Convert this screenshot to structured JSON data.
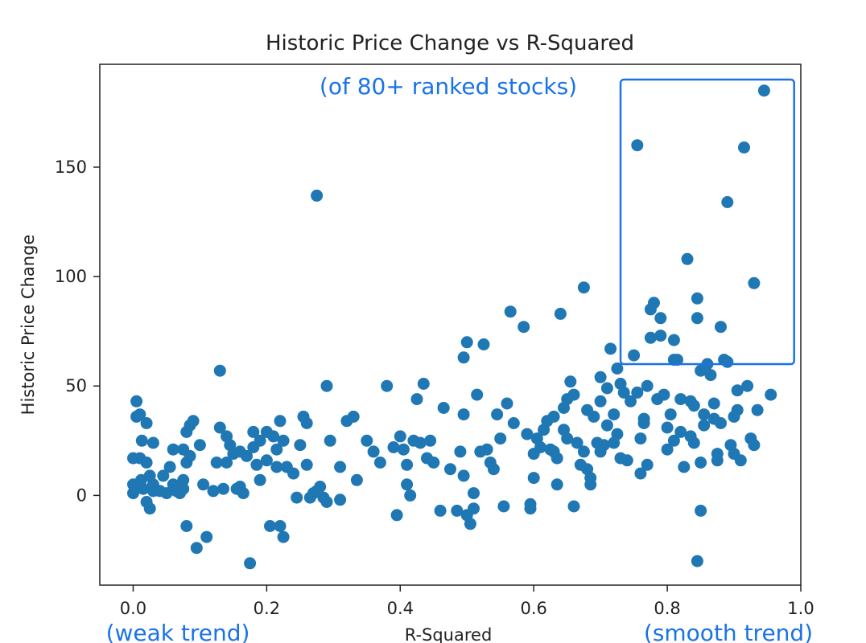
{
  "chart_data": {
    "type": "scatter",
    "title": "Historic Price Change vs R-Squared",
    "xlabel": "R-Squared",
    "ylabel": "Historic Price Change",
    "xlim": [
      -0.05,
      1.0
    ],
    "ylim": [
      -41,
      197
    ],
    "xticks": [
      0.0,
      0.2,
      0.4,
      0.6,
      0.8,
      1.0
    ],
    "xtick_labels": [
      "0.0",
      "0.2",
      "0.4",
      "0.6",
      "0.8",
      "1.0"
    ],
    "yticks": [
      0,
      50,
      100,
      150
    ],
    "ytick_labels": [
      "0",
      "50",
      "100",
      "150"
    ],
    "grid": false,
    "colors": {
      "points": "#1f77b4",
      "annotation": "#1a73e8"
    },
    "annotations": {
      "header": "(of 80+ ranked stocks)",
      "left": "(weak trend)",
      "right": "(smooth trend)",
      "highlight_box": {
        "x0": 0.73,
        "x1": 0.99,
        "y0": 60,
        "y1": 190
      }
    },
    "points": [
      [
        0.0,
        5
      ],
      [
        0.0,
        17
      ],
      [
        0.0,
        1
      ],
      [
        0.005,
        36
      ],
      [
        0.005,
        43
      ],
      [
        0.01,
        37
      ],
      [
        0.01,
        17
      ],
      [
        0.012,
        7
      ],
      [
        0.013,
        25
      ],
      [
        0.015,
        3
      ],
      [
        0.02,
        33
      ],
      [
        0.02,
        15
      ],
      [
        0.02,
        -3
      ],
      [
        0.025,
        -6
      ],
      [
        0.025,
        9
      ],
      [
        0.03,
        5
      ],
      [
        0.03,
        2
      ],
      [
        0.03,
        24
      ],
      [
        0.04,
        2
      ],
      [
        0.045,
        9
      ],
      [
        0.05,
        1
      ],
      [
        0.055,
        13
      ],
      [
        0.06,
        21
      ],
      [
        0.06,
        5
      ],
      [
        0.065,
        2
      ],
      [
        0.07,
        1
      ],
      [
        0.075,
        7
      ],
      [
        0.075,
        3
      ],
      [
        0.075,
        21
      ],
      [
        0.08,
        29
      ],
      [
        0.08,
        15
      ],
      [
        0.085,
        32
      ],
      [
        0.085,
        18
      ],
      [
        0.09,
        34
      ],
      [
        0.08,
        -14
      ],
      [
        0.095,
        -24
      ],
      [
        0.1,
        23
      ],
      [
        0.105,
        5
      ],
      [
        0.11,
        -19
      ],
      [
        0.12,
        2
      ],
      [
        0.125,
        15
      ],
      [
        0.13,
        57
      ],
      [
        0.13,
        31
      ],
      [
        0.135,
        3
      ],
      [
        0.14,
        27
      ],
      [
        0.14,
        15
      ],
      [
        0.145,
        23
      ],
      [
        0.15,
        19
      ],
      [
        0.155,
        3
      ],
      [
        0.16,
        20
      ],
      [
        0.16,
        4
      ],
      [
        0.165,
        1
      ],
      [
        0.17,
        18
      ],
      [
        0.175,
        -31
      ],
      [
        0.18,
        29
      ],
      [
        0.18,
        22
      ],
      [
        0.185,
        14
      ],
      [
        0.19,
        7
      ],
      [
        0.19,
        25
      ],
      [
        0.2,
        29
      ],
      [
        0.2,
        16
      ],
      [
        0.205,
        -14
      ],
      [
        0.21,
        27
      ],
      [
        0.215,
        21
      ],
      [
        0.215,
        13
      ],
      [
        0.22,
        34
      ],
      [
        0.22,
        -14
      ],
      [
        0.225,
        -19
      ],
      [
        0.225,
        25
      ],
      [
        0.23,
        13
      ],
      [
        0.24,
        10
      ],
      [
        0.245,
        -1
      ],
      [
        0.25,
        23
      ],
      [
        0.255,
        36
      ],
      [
        0.26,
        33
      ],
      [
        0.26,
        14
      ],
      [
        0.265,
        -1
      ],
      [
        0.27,
        1
      ],
      [
        0.275,
        137
      ],
      [
        0.275,
        2
      ],
      [
        0.28,
        4
      ],
      [
        0.285,
        -1
      ],
      [
        0.29,
        50
      ],
      [
        0.29,
        -3
      ],
      [
        0.295,
        25
      ],
      [
        0.31,
        -2
      ],
      [
        0.31,
        13
      ],
      [
        0.32,
        34
      ],
      [
        0.33,
        36
      ],
      [
        0.335,
        7
      ],
      [
        0.35,
        25
      ],
      [
        0.36,
        20
      ],
      [
        0.37,
        15
      ],
      [
        0.38,
        50
      ],
      [
        0.39,
        22
      ],
      [
        0.395,
        -9
      ],
      [
        0.4,
        27
      ],
      [
        0.405,
        21
      ],
      [
        0.41,
        14
      ],
      [
        0.41,
        5
      ],
      [
        0.415,
        0
      ],
      [
        0.42,
        25
      ],
      [
        0.425,
        44
      ],
      [
        0.43,
        24
      ],
      [
        0.435,
        51
      ],
      [
        0.44,
        17
      ],
      [
        0.445,
        25
      ],
      [
        0.45,
        15
      ],
      [
        0.46,
        -7
      ],
      [
        0.465,
        40
      ],
      [
        0.475,
        12
      ],
      [
        0.485,
        -7
      ],
      [
        0.49,
        20
      ],
      [
        0.495,
        37
      ],
      [
        0.495,
        9
      ],
      [
        0.495,
        63
      ],
      [
        0.5,
        70
      ],
      [
        0.5,
        -9
      ],
      [
        0.505,
        -13
      ],
      [
        0.51,
        1
      ],
      [
        0.51,
        -6
      ],
      [
        0.515,
        46
      ],
      [
        0.52,
        20
      ],
      [
        0.525,
        69
      ],
      [
        0.53,
        21
      ],
      [
        0.535,
        15
      ],
      [
        0.54,
        12
      ],
      [
        0.545,
        37
      ],
      [
        0.55,
        26
      ],
      [
        0.555,
        -5
      ],
      [
        0.56,
        42
      ],
      [
        0.565,
        84
      ],
      [
        0.57,
        33
      ],
      [
        0.585,
        77
      ],
      [
        0.59,
        28
      ],
      [
        0.595,
        -4
      ],
      [
        0.595,
        -6
      ],
      [
        0.6,
        19
      ],
      [
        0.6,
        8
      ],
      [
        0.605,
        26
      ],
      [
        0.61,
        22
      ],
      [
        0.615,
        30
      ],
      [
        0.62,
        34
      ],
      [
        0.625,
        21
      ],
      [
        0.63,
        36
      ],
      [
        0.63,
        20
      ],
      [
        0.635,
        17
      ],
      [
        0.635,
        5
      ],
      [
        0.64,
        83
      ],
      [
        0.645,
        40
      ],
      [
        0.645,
        30
      ],
      [
        0.65,
        26
      ],
      [
        0.65,
        44
      ],
      [
        0.655,
        52
      ],
      [
        0.66,
        46
      ],
      [
        0.66,
        -5
      ],
      [
        0.665,
        24
      ],
      [
        0.67,
        14
      ],
      [
        0.675,
        95
      ],
      [
        0.675,
        20
      ],
      [
        0.68,
        39
      ],
      [
        0.68,
        12
      ],
      [
        0.685,
        8
      ],
      [
        0.685,
        5
      ],
      [
        0.69,
        36
      ],
      [
        0.695,
        24
      ],
      [
        0.7,
        54
      ],
      [
        0.7,
        43
      ],
      [
        0.7,
        20
      ],
      [
        0.705,
        23
      ],
      [
        0.71,
        32
      ],
      [
        0.71,
        49
      ],
      [
        0.715,
        67
      ],
      [
        0.72,
        37
      ],
      [
        0.72,
        24
      ],
      [
        0.725,
        28
      ],
      [
        0.725,
        58
      ],
      [
        0.73,
        17
      ],
      [
        0.73,
        51
      ],
      [
        0.735,
        47
      ],
      [
        0.74,
        16
      ],
      [
        0.745,
        43
      ],
      [
        0.75,
        64
      ],
      [
        0.755,
        160
      ],
      [
        0.755,
        47
      ],
      [
        0.76,
        26
      ],
      [
        0.76,
        10
      ],
      [
        0.765,
        35
      ],
      [
        0.765,
        33
      ],
      [
        0.77,
        50
      ],
      [
        0.77,
        14
      ],
      [
        0.775,
        85
      ],
      [
        0.775,
        72
      ],
      [
        0.78,
        88
      ],
      [
        0.785,
        44
      ],
      [
        0.79,
        81
      ],
      [
        0.79,
        73
      ],
      [
        0.795,
        46
      ],
      [
        0.8,
        31
      ],
      [
        0.8,
        21
      ],
      [
        0.805,
        37
      ],
      [
        0.81,
        71
      ],
      [
        0.81,
        62
      ],
      [
        0.81,
        25
      ],
      [
        0.815,
        62
      ],
      [
        0.82,
        29
      ],
      [
        0.82,
        44
      ],
      [
        0.825,
        13
      ],
      [
        0.83,
        108
      ],
      [
        0.835,
        43
      ],
      [
        0.835,
        27
      ],
      [
        0.84,
        24
      ],
      [
        0.84,
        41
      ],
      [
        0.845,
        90
      ],
      [
        0.845,
        81
      ],
      [
        0.845,
        -30
      ],
      [
        0.85,
        57
      ],
      [
        0.85,
        -7
      ],
      [
        0.85,
        15
      ],
      [
        0.855,
        37
      ],
      [
        0.855,
        32
      ],
      [
        0.86,
        60
      ],
      [
        0.865,
        55
      ],
      [
        0.87,
        35
      ],
      [
        0.87,
        42
      ],
      [
        0.875,
        19
      ],
      [
        0.875,
        16
      ],
      [
        0.88,
        77
      ],
      [
        0.88,
        33
      ],
      [
        0.885,
        62
      ],
      [
        0.89,
        61
      ],
      [
        0.89,
        134
      ],
      [
        0.895,
        23
      ],
      [
        0.9,
        19
      ],
      [
        0.9,
        36
      ],
      [
        0.905,
        39
      ],
      [
        0.905,
        48
      ],
      [
        0.91,
        16
      ],
      [
        0.915,
        159
      ],
      [
        0.92,
        50
      ],
      [
        0.925,
        26
      ],
      [
        0.93,
        23
      ],
      [
        0.93,
        97
      ],
      [
        0.935,
        39
      ],
      [
        0.945,
        185
      ],
      [
        0.955,
        46
      ]
    ]
  }
}
